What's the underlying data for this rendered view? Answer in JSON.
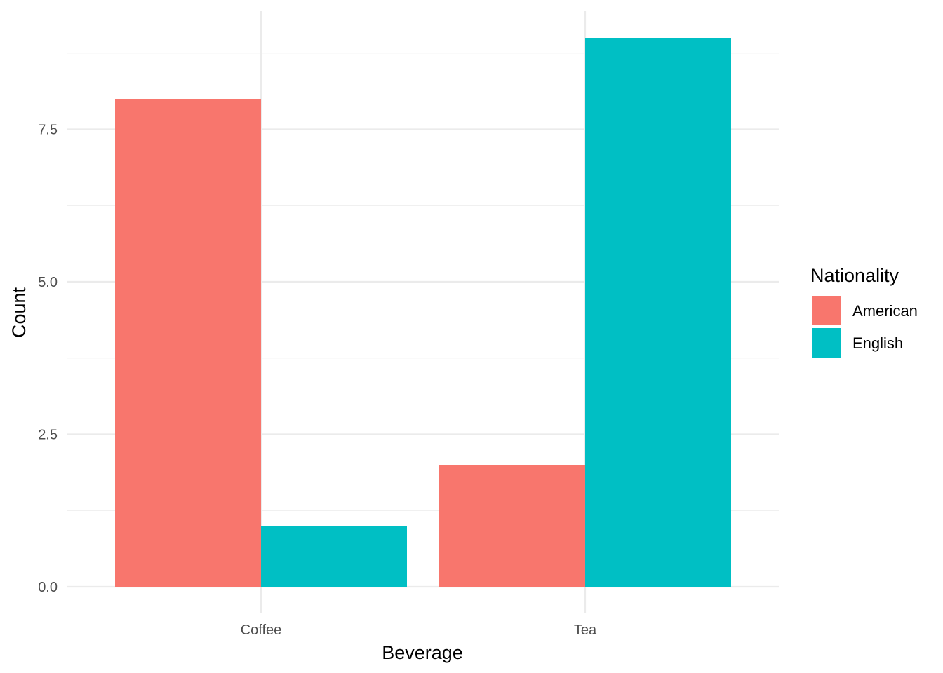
{
  "chart_data": {
    "type": "bar",
    "title": "",
    "xlabel": "Beverage",
    "ylabel": "Count",
    "categories": [
      "Coffee",
      "Tea"
    ],
    "series": [
      {
        "name": "American",
        "values": [
          8,
          2
        ],
        "color": "#F8766D"
      },
      {
        "name": "English",
        "values": [
          1,
          9
        ],
        "color": "#00BFC4"
      }
    ],
    "ylim": [
      0,
      9
    ],
    "yticks": [
      "0.0",
      "2.5",
      "5.0",
      "7.5"
    ],
    "ytick_values": [
      0,
      2.5,
      5,
      7.5
    ],
    "yminor_values": [
      1.25,
      3.75,
      6.25,
      8.75
    ],
    "grid": true,
    "legend": {
      "title": "Nationality",
      "position": "right"
    }
  }
}
